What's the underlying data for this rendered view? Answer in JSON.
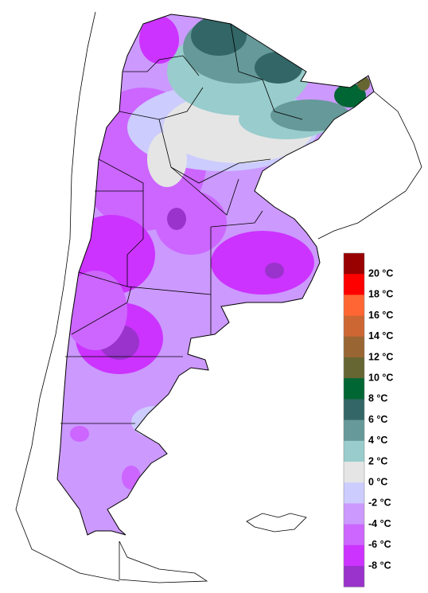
{
  "legend": {
    "swatches": [
      {
        "color": "#990000"
      },
      {
        "color": "#ff0000"
      },
      {
        "color": "#ff6633"
      },
      {
        "color": "#cc6633"
      },
      {
        "color": "#996633"
      },
      {
        "color": "#666633"
      },
      {
        "color": "#006633"
      },
      {
        "color": "#336666"
      },
      {
        "color": "#669999"
      },
      {
        "color": "#99cccc"
      },
      {
        "color": "#e5e5e5"
      },
      {
        "color": "#ccccff"
      },
      {
        "color": "#cc99ff"
      },
      {
        "color": "#cc66ff"
      },
      {
        "color": "#cc33ff"
      },
      {
        "color": "#9933cc"
      }
    ],
    "labels": [
      "20 °C",
      "18 °C",
      "16 °C",
      "14 °C",
      "12 °C",
      "10 °C",
      "8 °C",
      "6 °C",
      "4 °C",
      "2 °C",
      "0 °C",
      "-2 °C",
      "-4 °C",
      "-6 °C",
      "-8 °C"
    ]
  }
}
